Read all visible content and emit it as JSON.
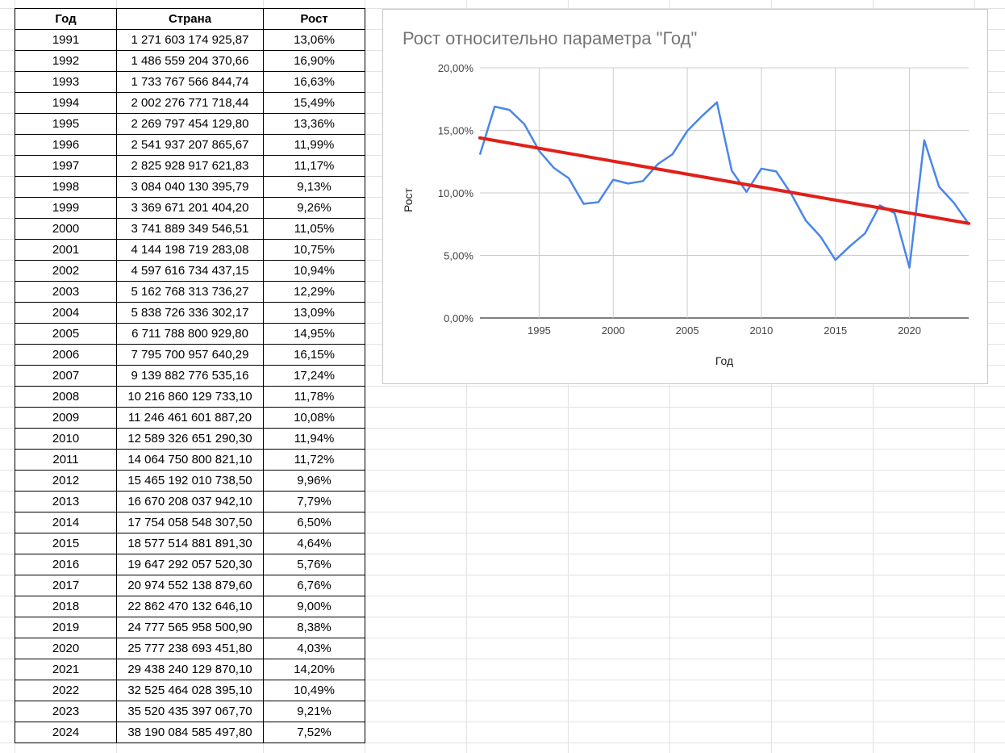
{
  "table": {
    "headers": [
      "Год",
      "Страна",
      "Рост"
    ],
    "rows": [
      [
        "1991",
        "1 271 603 174 925,87",
        "13,06%"
      ],
      [
        "1992",
        "1 486 559 204 370,66",
        "16,90%"
      ],
      [
        "1993",
        "1 733 767 566 844,74",
        "16,63%"
      ],
      [
        "1994",
        "2 002 276 771 718,44",
        "15,49%"
      ],
      [
        "1995",
        "2 269 797 454 129,80",
        "13,36%"
      ],
      [
        "1996",
        "2 541 937 207 865,67",
        "11,99%"
      ],
      [
        "1997",
        "2 825 928 917 621,83",
        "11,17%"
      ],
      [
        "1998",
        "3 084 040 130 395,79",
        "9,13%"
      ],
      [
        "1999",
        "3 369 671 201 404,20",
        "9,26%"
      ],
      [
        "2000",
        "3 741 889 349 546,51",
        "11,05%"
      ],
      [
        "2001",
        "4 144 198 719 283,08",
        "10,75%"
      ],
      [
        "2002",
        "4 597 616 734 437,15",
        "10,94%"
      ],
      [
        "2003",
        "5 162 768 313 736,27",
        "12,29%"
      ],
      [
        "2004",
        "5 838 726 336 302,17",
        "13,09%"
      ],
      [
        "2005",
        "6 711 788 800 929,80",
        "14,95%"
      ],
      [
        "2006",
        "7 795 700 957 640,29",
        "16,15%"
      ],
      [
        "2007",
        "9 139 882 776 535,16",
        "17,24%"
      ],
      [
        "2008",
        "10 216 860 129 733,10",
        "11,78%"
      ],
      [
        "2009",
        "11 246 461 601 887,20",
        "10,08%"
      ],
      [
        "2010",
        "12 589 326 651 290,30",
        "11,94%"
      ],
      [
        "2011",
        "14 064 750 800 821,10",
        "11,72%"
      ],
      [
        "2012",
        "15 465 192 010 738,50",
        "9,96%"
      ],
      [
        "2013",
        "16 670 208 037 942,10",
        "7,79%"
      ],
      [
        "2014",
        "17 754 058 548 307,50",
        "6,50%"
      ],
      [
        "2015",
        "18 577 514 881 891,30",
        "4,64%"
      ],
      [
        "2016",
        "19 647 292 057 520,30",
        "5,76%"
      ],
      [
        "2017",
        "20 974 552 138 879,60",
        "6,76%"
      ],
      [
        "2018",
        "22 862 470 132 646,10",
        "9,00%"
      ],
      [
        "2019",
        "24 777 565 958 500,90",
        "8,38%"
      ],
      [
        "2020",
        "25 777 238 693 451,80",
        "4,03%"
      ],
      [
        "2021",
        "29 438 240 129 870,10",
        "14,20%"
      ],
      [
        "2022",
        "32 525 464 028 395,10",
        "10,49%"
      ],
      [
        "2023",
        "35 520 435 397 067,70",
        "9,21%"
      ],
      [
        "2024",
        "38 190 084 585 497,80",
        "7,52%"
      ]
    ]
  },
  "chart_data": {
    "type": "line",
    "title": "Рост относительно параметра \"Год\"",
    "xlabel": "Год",
    "ylabel": "Рост",
    "x": [
      1991,
      1992,
      1993,
      1994,
      1995,
      1996,
      1997,
      1998,
      1999,
      2000,
      2001,
      2002,
      2003,
      2004,
      2005,
      2006,
      2007,
      2008,
      2009,
      2010,
      2011,
      2012,
      2013,
      2014,
      2015,
      2016,
      2017,
      2018,
      2019,
      2020,
      2021,
      2022,
      2023,
      2024
    ],
    "series": [
      {
        "values": [
          13.06,
          16.9,
          16.63,
          15.49,
          13.36,
          11.99,
          11.17,
          9.13,
          9.26,
          11.05,
          10.75,
          10.94,
          12.29,
          13.09,
          14.95,
          16.15,
          17.24,
          11.78,
          10.08,
          11.94,
          11.72,
          9.96,
          7.79,
          6.5,
          4.64,
          5.76,
          6.76,
          9.0,
          8.38,
          4.03,
          14.2,
          10.49,
          9.21,
          7.52
        ],
        "color": "#4a86e8"
      }
    ],
    "trendline": {
      "type": "linear",
      "color": "#e0201a"
    },
    "xlim": [
      1991,
      2024
    ],
    "ylim": [
      0,
      20
    ],
    "x_ticks": [
      1995,
      2000,
      2005,
      2010,
      2015,
      2020
    ],
    "x_tick_labels": [
      "1995",
      "2000",
      "2005",
      "2010",
      "2015",
      "2020"
    ],
    "y_ticks": [
      0,
      5,
      10,
      15,
      20
    ],
    "y_tick_labels": [
      "0,00%",
      "5,00%",
      "10,00%",
      "15,00%",
      "20,00%"
    ],
    "grid": true,
    "legend": "none"
  },
  "colors": {
    "series": "#4a86e8",
    "trendline": "#e0201a",
    "gridline": "#cccccc",
    "sheet_grid": "#e2e2e2"
  }
}
